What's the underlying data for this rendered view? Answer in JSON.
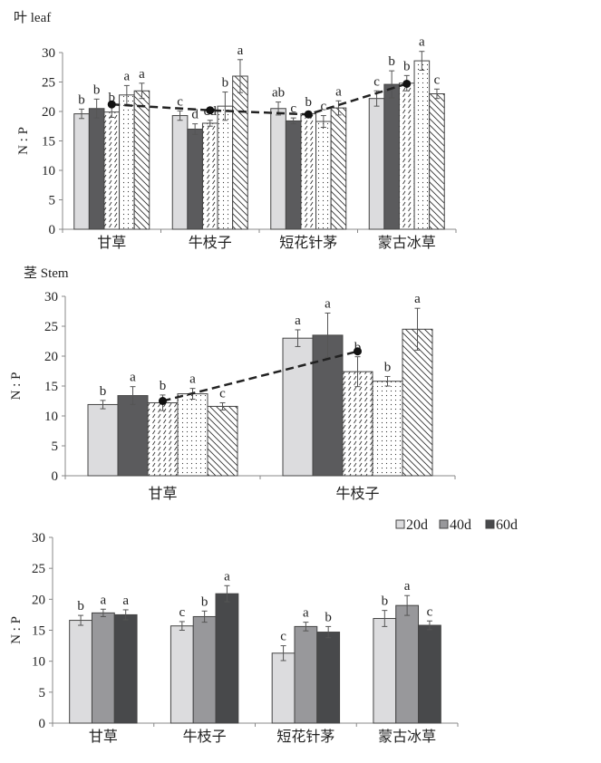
{
  "colors": {
    "light": "#dcdcde",
    "dark": "#5b5b5d",
    "d40": "#98989b",
    "d60": "#48494b",
    "axis": "#888888"
  },
  "chart_data": [
    {
      "type": "bar",
      "title": "叶 leaf",
      "ylabel": "N : P",
      "ylim": [
        0,
        30
      ],
      "yticks": [
        0,
        5,
        10,
        15,
        20,
        25,
        30
      ],
      "categories": [
        "甘草",
        "牛枝子",
        "短花针茅",
        "蒙古冰草"
      ],
      "series": [
        {
          "fill": "light",
          "values": [
            19.6,
            19.3,
            20.5,
            22.2
          ],
          "errors": [
            0.8,
            0.8,
            1.1,
            1.3
          ],
          "letters": [
            "b",
            "c",
            "ab",
            "c"
          ]
        },
        {
          "fill": "dark",
          "values": [
            20.5,
            17.0,
            18.4,
            24.6
          ],
          "errors": [
            1.6,
            0.9,
            0.5,
            2.3
          ],
          "letters": [
            "b",
            "d",
            "c",
            "b"
          ]
        },
        {
          "fill": "hatch",
          "values": [
            19.9,
            18.0,
            19.6,
            24.8
          ],
          "errors": [
            0.9,
            0.5,
            0.4,
            1.3
          ],
          "letters": [
            "b",
            "cd",
            "b",
            "b"
          ]
        },
        {
          "fill": "dots",
          "values": [
            22.8,
            20.9,
            18.3,
            28.6
          ],
          "errors": [
            1.6,
            2.4,
            1.0,
            1.6
          ],
          "letters": [
            "a",
            "b",
            "c",
            "a"
          ]
        },
        {
          "fill": "diag",
          "values": [
            23.5,
            26.0,
            20.6,
            23.0
          ],
          "errors": [
            1.3,
            2.8,
            1.2,
            0.8
          ],
          "letters": [
            "a",
            "a",
            "a",
            "c"
          ]
        }
      ],
      "trend_line": {
        "style": "dashed",
        "values": [
          21.2,
          20.2,
          19.5,
          24.7
        ]
      }
    },
    {
      "type": "bar",
      "title": "茎 Stem",
      "ylabel": "N : P",
      "ylim": [
        0,
        30
      ],
      "yticks": [
        0,
        5,
        10,
        15,
        20,
        25,
        30
      ],
      "categories": [
        "甘草",
        "牛枝子"
      ],
      "series": [
        {
          "fill": "light",
          "values": [
            11.9,
            23.0
          ],
          "errors": [
            0.7,
            1.4
          ],
          "letters": [
            "b",
            "a"
          ]
        },
        {
          "fill": "dark",
          "values": [
            13.4,
            23.5
          ],
          "errors": [
            1.5,
            3.7
          ],
          "letters": [
            "a",
            "a"
          ]
        },
        {
          "fill": "hatch",
          "values": [
            12.2,
            17.4
          ],
          "errors": [
            1.3,
            2.5
          ],
          "letters": [
            "b",
            "b"
          ]
        },
        {
          "fill": "dots",
          "values": [
            13.7,
            15.8
          ],
          "errors": [
            0.9,
            0.8
          ],
          "letters": [
            "a",
            "b"
          ]
        },
        {
          "fill": "diag",
          "values": [
            11.6,
            24.5
          ],
          "errors": [
            0.6,
            3.5
          ],
          "letters": [
            "c",
            "a"
          ]
        }
      ],
      "trend_line": {
        "style": "dashed",
        "values": [
          12.5,
          20.8
        ]
      }
    },
    {
      "type": "bar",
      "title": "",
      "ylabel": "N : P",
      "ylim": [
        0,
        30
      ],
      "yticks": [
        0,
        5,
        10,
        15,
        20,
        25,
        30
      ],
      "categories": [
        "甘草",
        "牛枝子",
        "短花针茅",
        "蒙古冰草"
      ],
      "legend_position": "top-right",
      "series": [
        {
          "name": "20d",
          "fill": "light",
          "values": [
            16.6,
            15.7,
            11.3,
            16.9
          ],
          "errors": [
            0.8,
            0.7,
            1.2,
            1.3
          ],
          "letters": [
            "b",
            "c",
            "c",
            "b"
          ]
        },
        {
          "name": "40d",
          "fill": "d40",
          "values": [
            17.8,
            17.2,
            15.6,
            19.0
          ],
          "errors": [
            0.6,
            0.9,
            0.7,
            1.6
          ],
          "letters": [
            "a",
            "b",
            "a",
            "a"
          ]
        },
        {
          "name": "60d",
          "fill": "d60",
          "values": [
            17.5,
            20.9,
            14.7,
            15.8
          ],
          "errors": [
            0.8,
            1.3,
            0.9,
            0.7
          ],
          "letters": [
            "a",
            "a",
            "b",
            "c"
          ]
        }
      ]
    }
  ]
}
